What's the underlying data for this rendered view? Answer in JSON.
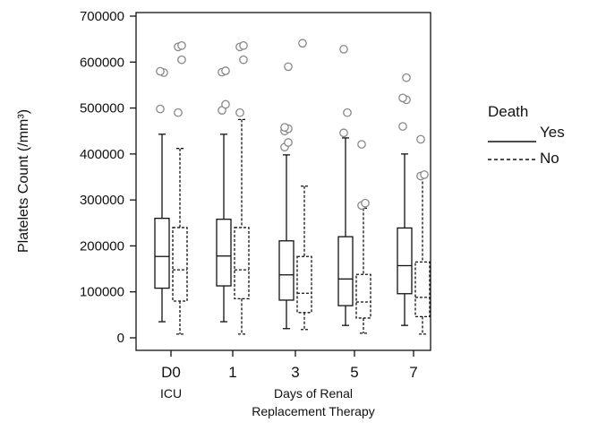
{
  "chart_data": {
    "type": "box",
    "ylabel": "Platelets Count (/mm³)",
    "ylim": [
      0,
      700000
    ],
    "yticks": [
      0,
      100000,
      200000,
      300000,
      400000,
      500000,
      600000,
      700000
    ],
    "ytick_labels": [
      "0",
      "100000",
      "200000",
      "300000",
      "400000",
      "500000",
      "600000",
      "700000"
    ],
    "categories": [
      "D0",
      "1",
      "3",
      "5",
      "7"
    ],
    "group_labels": {
      "icu": "ICU",
      "rrt": "Days of Renal",
      "rrt_2": "Replacement Therapy"
    },
    "legend": {
      "title": "Death",
      "placement": "right"
    },
    "grid": false,
    "series": [
      {
        "name": "Yes",
        "line_style": "solid",
        "boxes": [
          {
            "whisker_low": 35000,
            "q1": 108000,
            "median": 177000,
            "q3": 260000,
            "whisker_high": 443000,
            "outliers": [
              498000,
              577000,
              580000
            ]
          },
          {
            "whisker_low": 35000,
            "q1": 113000,
            "median": 178000,
            "q3": 258000,
            "whisker_high": 443000,
            "outliers": [
              495000,
              508000,
              578000,
              581000
            ]
          },
          {
            "whisker_low": 20000,
            "q1": 82000,
            "median": 137000,
            "q3": 211000,
            "whisker_high": 398000,
            "outliers": [
              415000,
              425000,
              450000,
              455000,
              458000,
              590000
            ]
          },
          {
            "whisker_low": 27000,
            "q1": 70000,
            "median": 128000,
            "q3": 220000,
            "whisker_high": 435000,
            "outliers": [
              446000,
              490000,
              628000
            ]
          },
          {
            "whisker_low": 27000,
            "q1": 96000,
            "median": 157000,
            "q3": 239000,
            "whisker_high": 400000,
            "outliers": [
              460000,
              518000,
              522000,
              566000
            ]
          }
        ]
      },
      {
        "name": "No",
        "line_style": "dashed",
        "boxes": [
          {
            "whisker_low": 8000,
            "q1": 80000,
            "median": 148000,
            "q3": 240000,
            "whisker_high": 412000,
            "outliers": [
              490000,
              605000,
              633000,
              636000
            ]
          },
          {
            "whisker_low": 8000,
            "q1": 85000,
            "median": 148000,
            "q3": 240000,
            "whisker_high": 475000,
            "outliers": [
              490000,
              605000,
              633000,
              636000
            ]
          },
          {
            "whisker_low": 18000,
            "q1": 55000,
            "median": 97000,
            "q3": 177000,
            "whisker_high": 330000,
            "outliers": [
              641000
            ]
          },
          {
            "whisker_low": 10000,
            "q1": 43000,
            "median": 78000,
            "q3": 138000,
            "whisker_high": 282000,
            "outliers": [
              288000,
              293000,
              421000
            ]
          },
          {
            "whisker_low": 8000,
            "q1": 46000,
            "median": 88000,
            "q3": 165000,
            "whisker_high": 350000,
            "outliers": [
              352000,
              355000,
              432000
            ]
          }
        ]
      }
    ]
  }
}
